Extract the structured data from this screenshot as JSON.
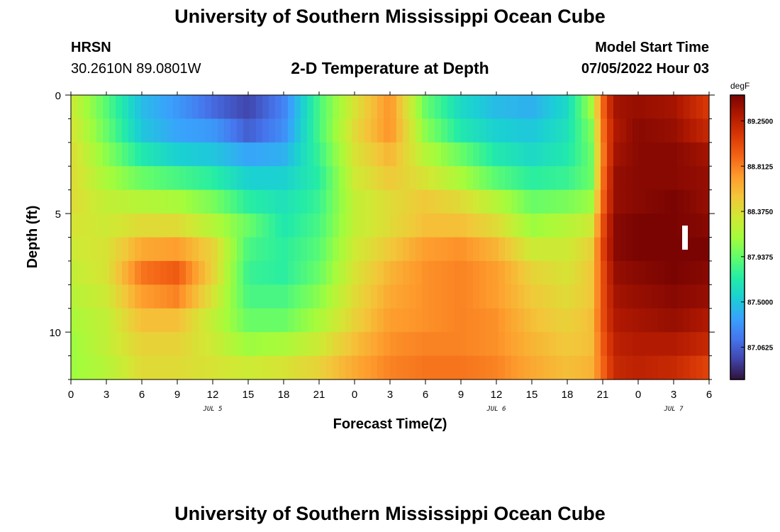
{
  "header": {
    "title": "University of Southern Mississippi Ocean Cube",
    "station": "HRSN",
    "coords": "30.2610N  89.0801W",
    "subtitle": "2-D Temperature at Depth",
    "start_label": "Model Start Time",
    "start_value": "07/05/2022 Hour 03"
  },
  "footer": {
    "title": "University of Southern Mississippi Ocean Cube"
  },
  "chart_data": {
    "type": "heatmap",
    "title": "2-D Temperature at Depth",
    "xlabel": "Forecast Time(Z)",
    "ylabel": "Depth (ft)",
    "x_start": "07/05/2022 00Z",
    "x_hours": [
      0,
      54
    ],
    "xticks": [
      "0",
      "3",
      "6",
      "9",
      "12",
      "15",
      "18",
      "21",
      "0",
      "3",
      "6",
      "9",
      "12",
      "15",
      "18",
      "21",
      "0",
      "3",
      "6"
    ],
    "date_labels": [
      {
        "label": "JUL 5",
        "hour": 12
      },
      {
        "label": "JUL 6",
        "hour": 36
      },
      {
        "label": "JUL 7",
        "hour": 51
      }
    ],
    "yticks": [
      "0",
      "5",
      "10"
    ],
    "ylim": [
      0,
      12
    ],
    "depth_levels_ft": [
      0,
      1,
      2,
      3,
      4,
      5,
      6,
      7,
      8,
      9,
      10,
      11
    ],
    "colorbar": {
      "unit": "degF",
      "range": [
        86.75,
        89.5
      ],
      "tick_values": [
        "89.2500",
        "88.8125",
        "88.3750",
        "87.9375",
        "87.5000",
        "87.0625"
      ],
      "colors": [
        "#30123b",
        "#4145ab",
        "#4675ed",
        "#39a2fc",
        "#1bcfd4",
        "#24eca6",
        "#61fc6c",
        "#a4fc3b",
        "#d1e834",
        "#f3c63a",
        "#fe9b2d",
        "#f36315",
        "#d93806",
        "#b11901",
        "#7a0402"
      ]
    },
    "columns": [
      {
        "hour": 0,
        "values": [
          88.3,
          88.35,
          88.4,
          88.4,
          88.4,
          88.35,
          88.3,
          88.25,
          88.2,
          88.15,
          88.1,
          88.1
        ]
      },
      {
        "hour": 3,
        "values": [
          87.9,
          87.95,
          88.05,
          88.15,
          88.25,
          88.3,
          88.35,
          88.35,
          88.3,
          88.25,
          88.25,
          88.2
        ]
      },
      {
        "hour": 6,
        "values": [
          87.45,
          87.5,
          87.7,
          87.95,
          88.2,
          88.4,
          88.65,
          88.85,
          88.7,
          88.55,
          88.45,
          88.4
        ]
      },
      {
        "hour": 9,
        "values": [
          87.3,
          87.35,
          87.55,
          87.85,
          88.15,
          88.4,
          88.7,
          88.95,
          88.8,
          88.55,
          88.45,
          88.4
        ]
      },
      {
        "hour": 12,
        "values": [
          87.1,
          87.3,
          87.5,
          87.75,
          88.0,
          88.2,
          88.45,
          88.45,
          88.35,
          88.25,
          88.3,
          88.35
        ]
      },
      {
        "hour": 15,
        "values": [
          86.95,
          87.05,
          87.35,
          87.55,
          87.75,
          87.95,
          87.85,
          87.8,
          87.85,
          87.95,
          88.1,
          88.3
        ]
      },
      {
        "hour": 18,
        "values": [
          87.2,
          87.25,
          87.4,
          87.55,
          87.65,
          87.7,
          87.75,
          87.75,
          87.85,
          87.95,
          88.15,
          88.35
        ]
      },
      {
        "hour": 21,
        "values": [
          87.85,
          87.85,
          87.8,
          87.75,
          87.8,
          87.85,
          87.9,
          87.95,
          88.05,
          88.15,
          88.3,
          88.45
        ]
      },
      {
        "hour": 24,
        "values": [
          88.35,
          88.4,
          88.35,
          88.3,
          88.25,
          88.25,
          88.3,
          88.35,
          88.4,
          88.45,
          88.55,
          88.65
        ]
      },
      {
        "hour": 27,
        "values": [
          88.75,
          88.75,
          88.6,
          88.5,
          88.4,
          88.4,
          88.5,
          88.6,
          88.65,
          88.7,
          88.75,
          88.8
        ]
      },
      {
        "hour": 30,
        "values": [
          87.95,
          88.05,
          88.2,
          88.35,
          88.5,
          88.55,
          88.7,
          88.75,
          88.75,
          88.75,
          88.8,
          88.85
        ]
      },
      {
        "hour": 33,
        "values": [
          87.6,
          87.7,
          87.95,
          88.15,
          88.4,
          88.55,
          88.75,
          88.8,
          88.8,
          88.8,
          88.8,
          88.85
        ]
      },
      {
        "hour": 36,
        "values": [
          87.45,
          87.55,
          87.7,
          87.9,
          88.2,
          88.4,
          88.6,
          88.7,
          88.7,
          88.75,
          88.75,
          88.8
        ]
      },
      {
        "hour": 39,
        "values": [
          87.4,
          87.5,
          87.6,
          87.75,
          87.95,
          88.1,
          88.3,
          88.45,
          88.5,
          88.55,
          88.6,
          88.65
        ]
      },
      {
        "hour": 42,
        "values": [
          87.6,
          87.65,
          87.7,
          87.8,
          88.0,
          88.2,
          88.3,
          88.35,
          88.4,
          88.45,
          88.5,
          88.55
        ]
      },
      {
        "hour": 44,
        "values": [
          88.1,
          88.0,
          87.95,
          87.95,
          88.1,
          88.3,
          88.45,
          88.5,
          88.5,
          88.55,
          88.55,
          88.6
        ]
      },
      {
        "hour": 45,
        "values": [
          88.9,
          88.85,
          88.8,
          88.85,
          88.9,
          89.0,
          89.05,
          89.0,
          89.0,
          89.0,
          88.95,
          88.9
        ]
      },
      {
        "hour": 46,
        "values": [
          89.35,
          89.3,
          89.35,
          89.4,
          89.4,
          89.45,
          89.45,
          89.4,
          89.35,
          89.3,
          89.25,
          89.2
        ]
      },
      {
        "hour": 48,
        "values": [
          89.4,
          89.45,
          89.45,
          89.45,
          89.45,
          89.5,
          89.5,
          89.45,
          89.4,
          89.35,
          89.3,
          89.25
        ]
      },
      {
        "hour": 51,
        "values": [
          89.35,
          89.4,
          89.45,
          89.45,
          89.5,
          89.5,
          89.5,
          89.5,
          89.45,
          89.4,
          89.3,
          89.2
        ]
      },
      {
        "hour": 54,
        "values": [
          89.1,
          89.2,
          89.35,
          89.4,
          89.4,
          89.45,
          89.5,
          89.45,
          89.4,
          89.3,
          89.2,
          89.05
        ]
      }
    ],
    "grid": false,
    "legend": "right"
  }
}
